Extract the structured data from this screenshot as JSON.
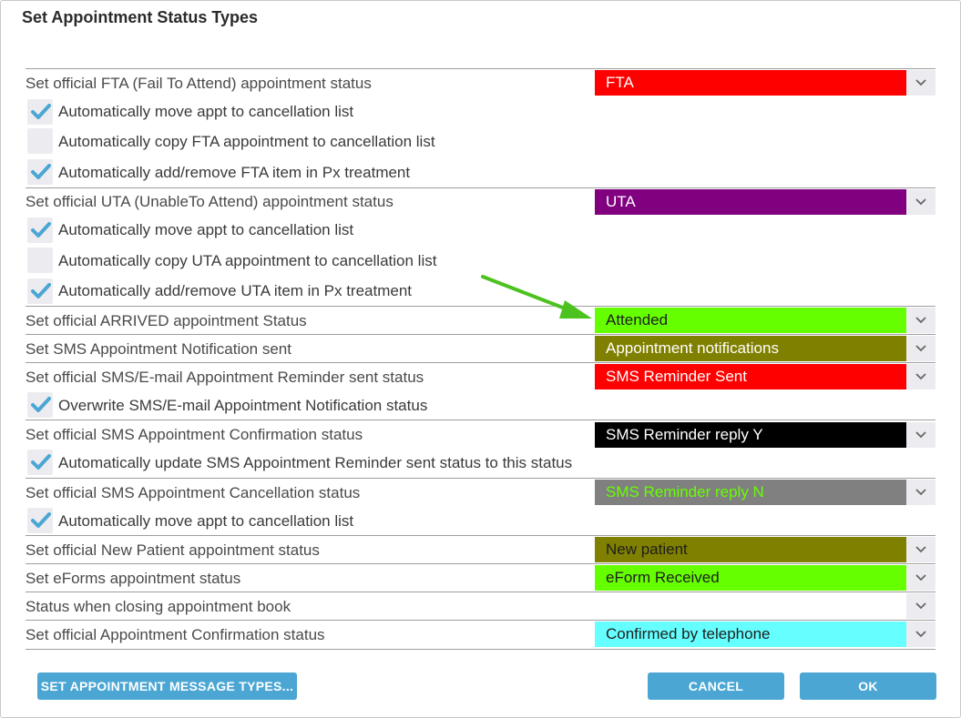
{
  "dialog": {
    "title": "Set Appointment Status Types"
  },
  "rows": {
    "fta_label": "Set official FTA (Fail To Attend) appointment status",
    "fta_value": "FTA",
    "fta_opt1": "Automatically move appt to cancellation list",
    "fta_opt2": "Automatically copy FTA appointment to cancellation list",
    "fta_opt3": "Automatically add/remove FTA item in Px treatment",
    "uta_label": "Set official UTA (UnableTo Attend) appointment status",
    "uta_value": "UTA",
    "uta_opt1": "Automatically move appt to cancellation list",
    "uta_opt2": "Automatically copy UTA appointment to cancellation list",
    "uta_opt3": "Automatically add/remove UTA item in Px treatment",
    "arrived_label": "Set official ARRIVED appointment Status",
    "arrived_value": "Attended",
    "sms_notif_label": "Set SMS Appointment Notification sent",
    "sms_notif_value": "Appointment notifications",
    "reminder_label": "Set official SMS/E-mail Appointment Reminder sent status",
    "reminder_value": "SMS Reminder Sent",
    "reminder_opt1": "Overwrite SMS/E-mail Appointment Notification status",
    "confirm_sms_label": "Set official SMS Appointment Confirmation status",
    "confirm_sms_value": "SMS Reminder reply Y",
    "confirm_sms_opt1": "Automatically update SMS Appointment Reminder sent status to this status",
    "cancel_sms_label": "Set official SMS Appointment Cancellation status",
    "cancel_sms_value": "SMS Reminder reply N",
    "cancel_sms_opt1": "Automatically move appt to cancellation list",
    "new_patient_label": "Set official New Patient appointment status",
    "new_patient_value": "New patient",
    "eforms_label": "Set eForms appointment status",
    "eforms_value": "eForm Received",
    "closing_label": "Status when closing appointment book",
    "closing_value": "",
    "confirm_label": "Set official Appointment Confirmation status",
    "confirm_value": "Confirmed by telephone"
  },
  "checkboxes": {
    "fta_opt1": true,
    "fta_opt2": false,
    "fta_opt3": true,
    "uta_opt1": true,
    "uta_opt2": false,
    "uta_opt3": true,
    "reminder_opt1": true,
    "confirm_sms_opt1": true,
    "cancel_sms_opt1": true
  },
  "colors": {
    "fta": "#ff0000",
    "uta": "#800080",
    "arrived": "#66ff00",
    "sms_notif": "#808000",
    "reminder": "#ff0000",
    "confirm_sms": "#000000",
    "cancel_sms": "#808080",
    "cancel_sms_text": "#66ff00",
    "new_patient": "#808000",
    "eforms": "#66ff00",
    "confirm": "#66ffff",
    "check": "#4ba6d4",
    "button": "#4ba6d4",
    "annotation_arrow": "#4cc21f"
  },
  "buttons": {
    "message_types": "SET APPOINTMENT MESSAGE TYPES...",
    "cancel": "CANCEL",
    "ok": "OK"
  },
  "icons": {
    "check": "checkmark-icon",
    "dropdown": "chevron-down-icon",
    "annotation": "green-arrow"
  }
}
